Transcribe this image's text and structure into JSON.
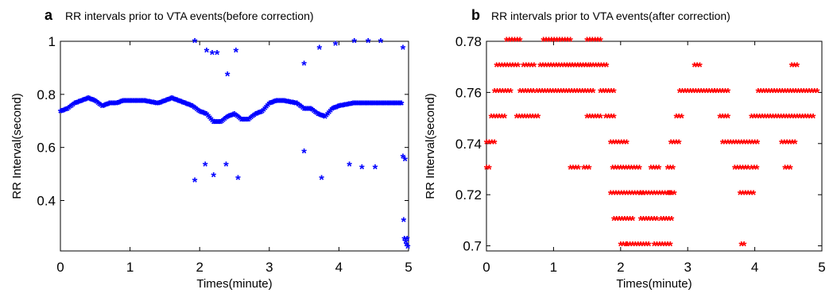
{
  "chart_data": [
    {
      "type": "scatter",
      "panel_label": "a",
      "title": "RR intervals prior to VTA events(before correction)",
      "xlabel": "Times(minute)",
      "ylabel": "RR Interval(second)",
      "xlim": [
        0,
        5
      ],
      "ylim": [
        0.21,
        1.0
      ],
      "xticks": [
        "0",
        "1",
        "2",
        "3",
        "4",
        "5"
      ],
      "yticks": [
        "0.4",
        "0.6",
        "0.8",
        "1"
      ],
      "grid": false,
      "marker": "*",
      "color": "#0000ff",
      "baseline": [
        [
          0.0,
          0.73
        ],
        [
          0.1,
          0.74
        ],
        [
          0.2,
          0.76
        ],
        [
          0.3,
          0.77
        ],
        [
          0.4,
          0.78
        ],
        [
          0.5,
          0.77
        ],
        [
          0.6,
          0.75
        ],
        [
          0.7,
          0.76
        ],
        [
          0.8,
          0.76
        ],
        [
          0.9,
          0.77
        ],
        [
          1.0,
          0.77
        ],
        [
          1.2,
          0.77
        ],
        [
          1.4,
          0.76
        ],
        [
          1.6,
          0.78
        ],
        [
          1.7,
          0.77
        ],
        [
          1.8,
          0.76
        ],
        [
          1.9,
          0.75
        ],
        [
          2.0,
          0.73
        ],
        [
          2.1,
          0.72
        ],
        [
          2.2,
          0.69
        ],
        [
          2.3,
          0.69
        ],
        [
          2.4,
          0.71
        ],
        [
          2.5,
          0.72
        ],
        [
          2.6,
          0.7
        ],
        [
          2.7,
          0.7
        ],
        [
          2.8,
          0.72
        ],
        [
          2.9,
          0.73
        ],
        [
          3.0,
          0.76
        ],
        [
          3.1,
          0.77
        ],
        [
          3.2,
          0.77
        ],
        [
          3.4,
          0.76
        ],
        [
          3.5,
          0.74
        ],
        [
          3.6,
          0.74
        ],
        [
          3.7,
          0.72
        ],
        [
          3.8,
          0.71
        ],
        [
          3.9,
          0.74
        ],
        [
          4.0,
          0.75
        ],
        [
          4.2,
          0.76
        ],
        [
          4.4,
          0.76
        ],
        [
          4.6,
          0.76
        ],
        [
          4.8,
          0.76
        ],
        [
          4.9,
          0.76
        ]
      ],
      "outliers": [
        [
          1.93,
          0.995
        ],
        [
          2.1,
          0.96
        ],
        [
          2.18,
          0.95
        ],
        [
          2.25,
          0.95
        ],
        [
          2.4,
          0.87
        ],
        [
          2.52,
          0.96
        ],
        [
          3.5,
          0.91
        ],
        [
          3.72,
          0.97
        ],
        [
          3.95,
          0.985
        ],
        [
          4.22,
          0.995
        ],
        [
          4.42,
          0.995
        ],
        [
          4.6,
          0.995
        ],
        [
          4.92,
          0.97
        ],
        [
          1.93,
          0.47
        ],
        [
          2.08,
          0.53
        ],
        [
          2.2,
          0.49
        ],
        [
          2.38,
          0.53
        ],
        [
          2.55,
          0.48
        ],
        [
          3.5,
          0.58
        ],
        [
          3.75,
          0.48
        ],
        [
          4.15,
          0.53
        ],
        [
          4.33,
          0.52
        ],
        [
          4.52,
          0.52
        ],
        [
          4.92,
          0.56
        ],
        [
          4.95,
          0.55
        ],
        [
          4.93,
          0.32
        ],
        [
          4.94,
          0.25
        ],
        [
          4.96,
          0.24
        ],
        [
          4.97,
          0.23
        ],
        [
          4.98,
          0.25
        ],
        [
          4.99,
          0.22
        ]
      ]
    },
    {
      "type": "scatter",
      "panel_label": "b",
      "title": "RR intervals prior to VTA events(after correction)",
      "xlabel": "Times(minute)",
      "ylabel": "RR Interval(second)",
      "xlim": [
        0,
        5
      ],
      "ylim": [
        0.698,
        0.78
      ],
      "xticks": [
        "0",
        "1",
        "2",
        "3",
        "4",
        "5"
      ],
      "yticks": [
        "0.7",
        "0.72",
        "0.74",
        "0.76",
        "0.78"
      ],
      "grid": false,
      "marker": "*",
      "color": "#ff0000",
      "segments": [
        [
          0.0,
          0.05,
          0.73
        ],
        [
          0.0,
          0.12,
          0.74
        ],
        [
          0.07,
          0.28,
          0.75
        ],
        [
          0.12,
          0.38,
          0.76
        ],
        [
          0.15,
          0.48,
          0.77
        ],
        [
          0.3,
          0.52,
          0.78
        ],
        [
          0.45,
          0.8,
          0.75
        ],
        [
          0.5,
          0.72,
          0.76
        ],
        [
          0.55,
          0.72,
          0.77
        ],
        [
          0.8,
          1.5,
          0.77
        ],
        [
          0.85,
          1.28,
          0.78
        ],
        [
          0.75,
          1.62,
          0.76
        ],
        [
          1.2,
          1.55,
          0.77
        ],
        [
          1.5,
          1.7,
          0.78
        ],
        [
          1.55,
          1.82,
          0.77
        ],
        [
          1.25,
          1.38,
          0.73
        ],
        [
          1.45,
          1.55,
          0.73
        ],
        [
          1.5,
          1.7,
          0.75
        ],
        [
          1.7,
          1.93,
          0.76
        ],
        [
          1.78,
          1.93,
          0.75
        ],
        [
          1.85,
          2.12,
          0.74
        ],
        [
          1.88,
          2.3,
          0.73
        ],
        [
          1.85,
          2.35,
          0.72
        ],
        [
          1.9,
          2.2,
          0.71
        ],
        [
          2.0,
          2.1,
          0.7
        ],
        [
          2.1,
          2.45,
          0.7
        ],
        [
          2.3,
          2.55,
          0.71
        ],
        [
          2.3,
          2.75,
          0.72
        ],
        [
          2.45,
          2.6,
          0.73
        ],
        [
          2.5,
          2.75,
          0.7
        ],
        [
          2.6,
          2.78,
          0.71
        ],
        [
          2.72,
          2.82,
          0.72
        ],
        [
          2.7,
          2.8,
          0.73
        ],
        [
          2.75,
          2.9,
          0.74
        ],
        [
          2.83,
          2.92,
          0.75
        ],
        [
          2.88,
          3.4,
          0.76
        ],
        [
          3.1,
          3.2,
          0.77
        ],
        [
          3.4,
          3.6,
          0.76
        ],
        [
          3.48,
          3.6,
          0.75
        ],
        [
          3.52,
          4.05,
          0.74
        ],
        [
          3.7,
          3.9,
          0.73
        ],
        [
          3.78,
          3.86,
          0.72
        ],
        [
          3.8,
          3.84,
          0.7
        ],
        [
          3.9,
          4.0,
          0.72
        ],
        [
          3.95,
          4.05,
          0.73
        ],
        [
          3.95,
          4.9,
          0.75
        ],
        [
          4.05,
          4.95,
          0.76
        ],
        [
          4.4,
          4.6,
          0.74
        ],
        [
          4.45,
          4.55,
          0.73
        ],
        [
          4.55,
          4.65,
          0.77
        ]
      ]
    }
  ]
}
